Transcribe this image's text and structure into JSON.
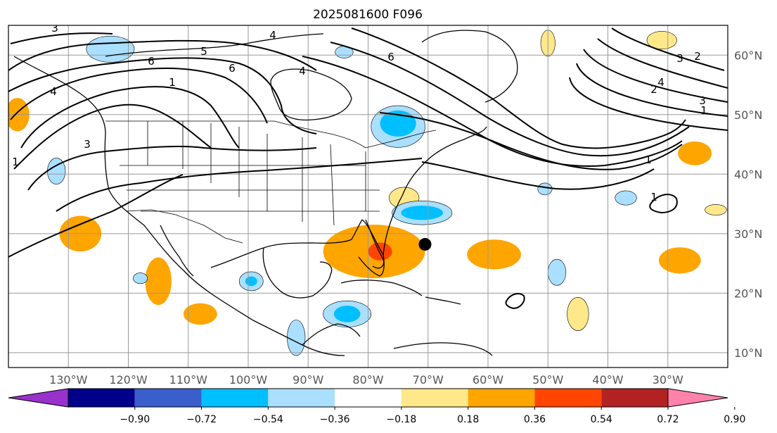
{
  "title": "2025081600 F096",
  "map": {
    "lon_range": [
      -140,
      -20
    ],
    "lat_range": [
      7.5,
      65
    ],
    "lon_ticks": [
      {
        "lon": -130,
        "label": "130°W"
      },
      {
        "lon": -120,
        "label": "120°W"
      },
      {
        "lon": -110,
        "label": "110°W"
      },
      {
        "lon": -100,
        "label": "100°W"
      },
      {
        "lon": -90,
        "label": "90°W"
      },
      {
        "lon": -80,
        "label": "80°W"
      },
      {
        "lon": -70,
        "label": "70°W"
      },
      {
        "lon": -60,
        "label": "60°W"
      },
      {
        "lon": -50,
        "label": "50°W"
      },
      {
        "lon": -40,
        "label": "40°W"
      },
      {
        "lon": -30,
        "label": "30°W"
      }
    ],
    "lat_ticks": [
      {
        "lat": 60,
        "label": "60°N"
      },
      {
        "lat": 50,
        "label": "50°N"
      },
      {
        "lat": 40,
        "label": "40°N"
      },
      {
        "lat": 30,
        "label": "30°N"
      },
      {
        "lat": 20,
        "label": "20°N"
      },
      {
        "lat": 10,
        "label": "10°N"
      }
    ],
    "marker": {
      "lon": -70.5,
      "lat": 28.2,
      "color": "#000000"
    }
  },
  "colorbar": {
    "ticks": [
      "−0.90",
      "−0.72",
      "−0.54",
      "−0.36",
      "−0.18",
      "0.18",
      "0.36",
      "0.54",
      "0.72",
      "0.90"
    ],
    "colors": [
      "#9932cc",
      "#00008b",
      "#3a5fcd",
      "#00bfff",
      "#aadfff",
      "#ffffff",
      "#ffe88a",
      "#ffa500",
      "#ff4500",
      "#b22222",
      "#ff82ab"
    ]
  },
  "shading": [
    {
      "lon": -79,
      "lat": 27,
      "rx": 8.5,
      "ry": 4.5,
      "level": 1,
      "color": "#ffa500"
    },
    {
      "lon": -78,
      "lat": 27,
      "rx": 2,
      "ry": 1.5,
      "level": 2,
      "color": "#ff4500"
    },
    {
      "lon": -74,
      "lat": 36,
      "rx": 2.5,
      "ry": 1.8,
      "level": 0,
      "color": "#ffe88a"
    },
    {
      "lon": -59,
      "lat": 26.5,
      "rx": 4.5,
      "ry": 2.5,
      "level": 1,
      "color": "#ffa500"
    },
    {
      "lon": -28,
      "lat": 25.5,
      "rx": 3.5,
      "ry": 2.2,
      "level": 1,
      "color": "#ffa500"
    },
    {
      "lon": -115,
      "lat": 22,
      "rx": 2.2,
      "ry": 4,
      "level": 1,
      "color": "#ffa500"
    },
    {
      "lon": -128,
      "lat": 30,
      "rx": 3.5,
      "ry": 3,
      "level": 1,
      "color": "#ffa500"
    },
    {
      "lon": -138.5,
      "lat": 50,
      "rx": 2,
      "ry": 2.8,
      "level": 1,
      "color": "#ffa500"
    },
    {
      "lon": -25.5,
      "lat": 43.5,
      "rx": 2.8,
      "ry": 2,
      "level": 1,
      "color": "#ffa500"
    },
    {
      "lon": -108,
      "lat": 16.5,
      "rx": 2.8,
      "ry": 1.8,
      "level": 1,
      "color": "#ffa500"
    },
    {
      "lon": -45,
      "lat": 16.5,
      "rx": 1.8,
      "ry": 2.8,
      "level": 0,
      "color": "#ffe88a"
    },
    {
      "lon": -31,
      "lat": 62.5,
      "rx": 2.5,
      "ry": 1.5,
      "level": 0,
      "color": "#ffe88a"
    },
    {
      "lon": -50,
      "lat": 62,
      "rx": 1.2,
      "ry": 2.2,
      "level": 0,
      "color": "#ffe88a"
    },
    {
      "lon": -22,
      "lat": 34,
      "rx": 1.8,
      "ry": 0.9,
      "level": 0,
      "color": "#ffe88a"
    },
    {
      "lon": -75,
      "lat": 48,
      "rx": 4.5,
      "ry": 3.5,
      "level": 0,
      "color": "#aadfff"
    },
    {
      "lon": -75,
      "lat": 48.5,
      "rx": 3,
      "ry": 2.2,
      "level": 1,
      "color": "#00bfff"
    },
    {
      "lon": -71,
      "lat": 33.5,
      "rx": 5,
      "ry": 2,
      "level": 0,
      "color": "#aadfff"
    },
    {
      "lon": -71,
      "lat": 33.5,
      "rx": 3.5,
      "ry": 1.2,
      "level": 1,
      "color": "#00bfff"
    },
    {
      "lon": -83.5,
      "lat": 16.5,
      "rx": 4,
      "ry": 2.2,
      "level": 0,
      "color": "#aadfff"
    },
    {
      "lon": -83.5,
      "lat": 16.5,
      "rx": 2.2,
      "ry": 1.4,
      "level": 1,
      "color": "#00bfff"
    },
    {
      "lon": -99.5,
      "lat": 22,
      "rx": 2,
      "ry": 1.6,
      "level": 0,
      "color": "#aadfff"
    },
    {
      "lon": -99.5,
      "lat": 22,
      "rx": 1,
      "ry": 0.8,
      "level": 1,
      "color": "#00bfff"
    },
    {
      "lon": -92,
      "lat": 12.5,
      "rx": 1.5,
      "ry": 3,
      "level": 0,
      "color": "#aadfff"
    },
    {
      "lon": -48.5,
      "lat": 23.5,
      "rx": 1.5,
      "ry": 2.2,
      "level": 0,
      "color": "#aadfff"
    },
    {
      "lon": -132,
      "lat": 40.5,
      "rx": 1.5,
      "ry": 2.2,
      "level": 0,
      "color": "#aadfff"
    },
    {
      "lon": -37,
      "lat": 36,
      "rx": 1.8,
      "ry": 1.2,
      "level": 0,
      "color": "#aadfff"
    },
    {
      "lon": -118,
      "lat": 22.5,
      "rx": 1.2,
      "ry": 0.9,
      "level": 0,
      "color": "#aadfff"
    },
    {
      "lon": -84,
      "lat": 60.5,
      "rx": 1.5,
      "ry": 1,
      "level": 0,
      "color": "#aadfff"
    },
    {
      "lon": -50.5,
      "lat": 37.5,
      "rx": 1.2,
      "ry": 1,
      "level": 0,
      "color": "#aadfff"
    },
    {
      "lon": -123,
      "lat": 61,
      "rx": 4,
      "ry": 2.2,
      "level": 0,
      "color": "#aadfff"
    }
  ],
  "contour_labels": [
    "3",
    "6",
    "5",
    "6",
    "4",
    "1",
    "4",
    "6",
    "4",
    "3",
    "1",
    "2",
    "3",
    "4",
    "1",
    "3",
    "2",
    "1",
    "1"
  ]
}
